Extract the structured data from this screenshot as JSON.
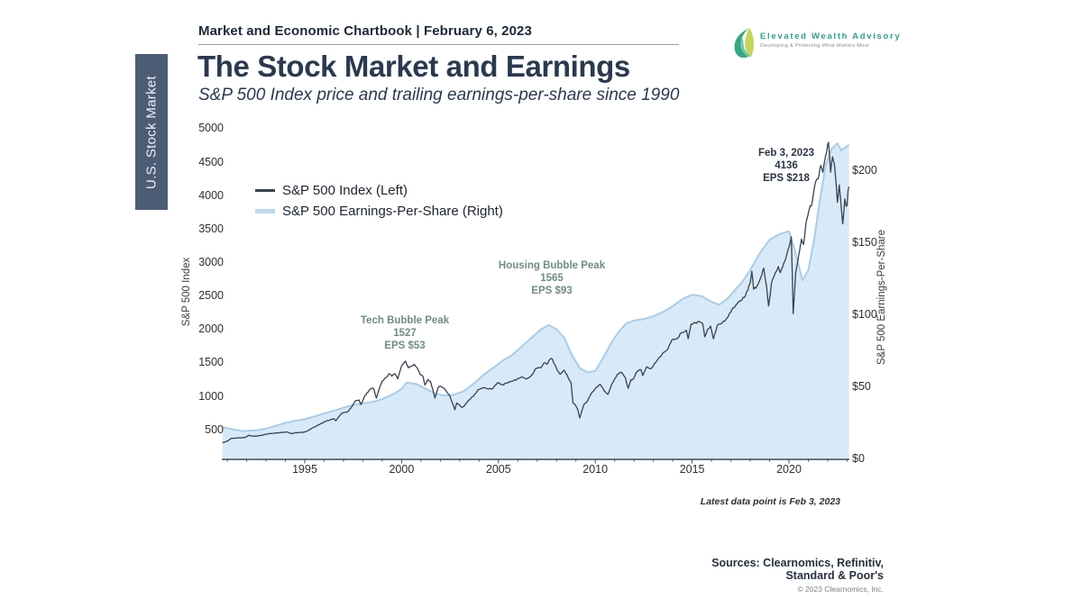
{
  "page": {
    "header": "Market and Economic Chartbook | February 6, 2023",
    "title": "The Stock Market and Earnings",
    "subtitle": "S&P 500 Index price and trailing earnings-per-share since 1990",
    "section_tab": "U.S. Stock Market",
    "footnote": "Latest data point is Feb 3, 2023",
    "sources_line1": "Sources: Clearnomics, Refinitiv,",
    "sources_line2": "Standard & Poor's",
    "copyright": "© 2023 Clearnomics, Inc."
  },
  "logo": {
    "name": "Elevated Wealth Advisory",
    "tagline": "Developing & Protecting What Matters Most",
    "brand_color": "#2f9e8f"
  },
  "colors": {
    "index_line": "#39434e",
    "eps_fill": "#d8eaf8",
    "eps_stroke": "#a8cde9",
    "axis": "#3f4a55",
    "annotation_green": "#6d8f7d",
    "tab_background": "#4d5c75"
  },
  "chart_data": {
    "type": "line",
    "title": "The Stock Market and Earnings",
    "subtitle": "S&P 500 Index price and trailing earnings-per-share since 1990",
    "grid": false,
    "legend_position": "upper-left",
    "legend": [
      {
        "label": "S&P 500 Index (Left)",
        "color": "#39434e",
        "style": "line"
      },
      {
        "label": "S&P 500 Earnings-Per-Share (Right)",
        "color": "#bcd9f0",
        "style": "area"
      }
    ],
    "x_axis": {
      "range": [
        1990.7,
        2023.3
      ],
      "ticks": [
        1995,
        2000,
        2005,
        2010,
        2015,
        2020
      ]
    },
    "left_axis": {
      "label": "S&P 500 Index",
      "range": [
        0,
        5000
      ],
      "ticks": [
        500,
        1000,
        1500,
        2000,
        2500,
        3000,
        3500,
        4000,
        4500,
        5000
      ]
    },
    "right_axis": {
      "label": "S&P 500 Earnings-Per-Share",
      "range": [
        0,
        225
      ],
      "tick_values": [
        0,
        50,
        100,
        150,
        200
      ],
      "ticks": [
        "$0",
        "$50",
        "$100",
        "$150",
        "$200"
      ]
    },
    "annotations": [
      {
        "lines": [
          "Tech Bubble Peak",
          "1527",
          "EPS $53"
        ],
        "x": 2000.2,
        "color": "#6d8f7d"
      },
      {
        "lines": [
          "Housing Bubble Peak",
          "1565",
          "EPS $93"
        ],
        "x": 2007.75,
        "color": "#6d8f7d"
      },
      {
        "lines": [
          "Feb 3, 2023",
          "4136",
          "EPS $218"
        ],
        "x": 2023.1,
        "color": "#2a3644"
      }
    ],
    "series": [
      {
        "name": "S&P 500 Index",
        "axis": "left",
        "type": "line",
        "points": [
          [
            1990.75,
            306
          ],
          [
            1991.0,
            330
          ],
          [
            1991.2,
            373
          ],
          [
            1991.5,
            378
          ],
          [
            1991.9,
            385
          ],
          [
            1992.1,
            417
          ],
          [
            1992.4,
            403
          ],
          [
            1992.7,
            414
          ],
          [
            1993.0,
            435
          ],
          [
            1993.4,
            448
          ],
          [
            1993.8,
            459
          ],
          [
            1994.1,
            467
          ],
          [
            1994.3,
            446
          ],
          [
            1994.6,
            455
          ],
          [
            1994.9,
            461
          ],
          [
            1995.1,
            478
          ],
          [
            1995.4,
            527
          ],
          [
            1995.7,
            572
          ],
          [
            1996.0,
            616
          ],
          [
            1996.2,
            640
          ],
          [
            1996.5,
            666
          ],
          [
            1996.6,
            635
          ],
          [
            1996.9,
            744
          ],
          [
            1997.2,
            766
          ],
          [
            1997.4,
            830
          ],
          [
            1997.6,
            930
          ],
          [
            1997.8,
            946
          ],
          [
            1997.9,
            876
          ],
          [
            1998.1,
            1010
          ],
          [
            1998.4,
            1110
          ],
          [
            1998.55,
            1120
          ],
          [
            1998.7,
            973
          ],
          [
            1998.9,
            1160
          ],
          [
            1999.0,
            1229
          ],
          [
            1999.2,
            1280
          ],
          [
            1999.35,
            1340
          ],
          [
            1999.5,
            1300
          ],
          [
            1999.65,
            1340
          ],
          [
            1999.8,
            1260
          ],
          [
            2000.0,
            1455
          ],
          [
            2000.2,
            1527
          ],
          [
            2000.35,
            1425
          ],
          [
            2000.5,
            1450
          ],
          [
            2000.65,
            1480
          ],
          [
            2000.85,
            1400
          ],
          [
            2000.95,
            1330
          ],
          [
            2001.1,
            1300
          ],
          [
            2001.2,
            1170
          ],
          [
            2001.35,
            1250
          ],
          [
            2001.5,
            1220
          ],
          [
            2001.72,
            975
          ],
          [
            2001.9,
            1140
          ],
          [
            2002.05,
            1150
          ],
          [
            2002.25,
            1100
          ],
          [
            2002.5,
            1000
          ],
          [
            2002.75,
            800
          ],
          [
            2002.85,
            900
          ],
          [
            2002.95,
            880
          ],
          [
            2003.1,
            835
          ],
          [
            2003.25,
            860
          ],
          [
            2003.45,
            940
          ],
          [
            2003.7,
            1000
          ],
          [
            2003.95,
            1100
          ],
          [
            2004.2,
            1130
          ],
          [
            2004.45,
            1110
          ],
          [
            2004.7,
            1115
          ],
          [
            2004.95,
            1205
          ],
          [
            2005.2,
            1170
          ],
          [
            2005.45,
            1200
          ],
          [
            2005.7,
            1225
          ],
          [
            2005.95,
            1255
          ],
          [
            2006.2,
            1290
          ],
          [
            2006.45,
            1260
          ],
          [
            2006.7,
            1310
          ],
          [
            2006.95,
            1420
          ],
          [
            2007.2,
            1430
          ],
          [
            2007.35,
            1500
          ],
          [
            2007.5,
            1480
          ],
          [
            2007.6,
            1530
          ],
          [
            2007.75,
            1565
          ],
          [
            2007.9,
            1480
          ],
          [
            2008.05,
            1380
          ],
          [
            2008.2,
            1330
          ],
          [
            2008.4,
            1390
          ],
          [
            2008.6,
            1280
          ],
          [
            2008.75,
            1200
          ],
          [
            2008.85,
            900
          ],
          [
            2008.95,
            880
          ],
          [
            2009.1,
            800
          ],
          [
            2009.2,
            677
          ],
          [
            2009.4,
            870
          ],
          [
            2009.6,
            930
          ],
          [
            2009.8,
            1050
          ],
          [
            2010.0,
            1115
          ],
          [
            2010.25,
            1180
          ],
          [
            2010.5,
            1070
          ],
          [
            2010.65,
            1030
          ],
          [
            2010.85,
            1180
          ],
          [
            2011.0,
            1260
          ],
          [
            2011.15,
            1330
          ],
          [
            2011.35,
            1360
          ],
          [
            2011.55,
            1280
          ],
          [
            2011.7,
            1120
          ],
          [
            2011.85,
            1250
          ],
          [
            2011.95,
            1255
          ],
          [
            2012.15,
            1370
          ],
          [
            2012.35,
            1400
          ],
          [
            2012.45,
            1310
          ],
          [
            2012.65,
            1440
          ],
          [
            2012.85,
            1410
          ],
          [
            2013.0,
            1460
          ],
          [
            2013.25,
            1560
          ],
          [
            2013.45,
            1630
          ],
          [
            2013.7,
            1690
          ],
          [
            2013.95,
            1840
          ],
          [
            2014.2,
            1860
          ],
          [
            2014.45,
            1950
          ],
          [
            2014.7,
            1990
          ],
          [
            2014.8,
            1860
          ],
          [
            2014.95,
            2080
          ],
          [
            2015.15,
            2100
          ],
          [
            2015.4,
            2110
          ],
          [
            2015.55,
            2080
          ],
          [
            2015.65,
            1890
          ],
          [
            2015.8,
            2000
          ],
          [
            2015.95,
            2050
          ],
          [
            2016.1,
            1860
          ],
          [
            2016.3,
            2060
          ],
          [
            2016.55,
            2100
          ],
          [
            2016.8,
            2170
          ],
          [
            2017.0,
            2260
          ],
          [
            2017.25,
            2360
          ],
          [
            2017.5,
            2430
          ],
          [
            2017.75,
            2500
          ],
          [
            2018.0,
            2690
          ],
          [
            2018.08,
            2870
          ],
          [
            2018.18,
            2600
          ],
          [
            2018.35,
            2650
          ],
          [
            2018.55,
            2780
          ],
          [
            2018.7,
            2915
          ],
          [
            2018.85,
            2630
          ],
          [
            2018.95,
            2350
          ],
          [
            2019.1,
            2700
          ],
          [
            2019.3,
            2850
          ],
          [
            2019.45,
            2940
          ],
          [
            2019.55,
            2850
          ],
          [
            2019.75,
            3000
          ],
          [
            2020.0,
            3230
          ],
          [
            2020.12,
            3385
          ],
          [
            2020.22,
            2237
          ],
          [
            2020.35,
            2850
          ],
          [
            2020.5,
            3100
          ],
          [
            2020.65,
            3350
          ],
          [
            2020.75,
            3270
          ],
          [
            2020.9,
            3620
          ],
          [
            2021.05,
            3800
          ],
          [
            2021.2,
            3900
          ],
          [
            2021.35,
            4180
          ],
          [
            2021.5,
            4250
          ],
          [
            2021.65,
            4450
          ],
          [
            2021.75,
            4350
          ],
          [
            2021.9,
            4600
          ],
          [
            2022.0,
            4770
          ],
          [
            2022.04,
            4796
          ],
          [
            2022.15,
            4350
          ],
          [
            2022.25,
            4580
          ],
          [
            2022.35,
            4460
          ],
          [
            2022.45,
            4130
          ],
          [
            2022.5,
            3900
          ],
          [
            2022.6,
            4160
          ],
          [
            2022.67,
            3920
          ],
          [
            2022.75,
            3650
          ],
          [
            2022.78,
            3577
          ],
          [
            2022.88,
            3950
          ],
          [
            2022.95,
            3840
          ],
          [
            2023.0,
            3850
          ],
          [
            2023.05,
            4070
          ],
          [
            2023.09,
            4136
          ]
        ]
      },
      {
        "name": "S&P 500 Earnings-Per-Share",
        "axis": "right",
        "type": "area",
        "points": [
          [
            1990.75,
            22
          ],
          [
            1991.3,
            20.5
          ],
          [
            1991.8,
            19.3
          ],
          [
            1992.5,
            19.8
          ],
          [
            1993.0,
            21
          ],
          [
            1993.5,
            23
          ],
          [
            1994.0,
            25
          ],
          [
            1994.5,
            26.5
          ],
          [
            1995.0,
            27.5
          ],
          [
            1995.5,
            29.5
          ],
          [
            1996.0,
            31.5
          ],
          [
            1996.5,
            33.5
          ],
          [
            1997.0,
            35.5
          ],
          [
            1997.5,
            37.5
          ],
          [
            1998.0,
            38.5
          ],
          [
            1998.5,
            39.5
          ],
          [
            1999.0,
            41.5
          ],
          [
            1999.5,
            44.5
          ],
          [
            2000.0,
            48.5
          ],
          [
            2000.25,
            53
          ],
          [
            2000.75,
            52
          ],
          [
            2001.2,
            49
          ],
          [
            2001.7,
            45.5
          ],
          [
            2002.2,
            44
          ],
          [
            2002.7,
            44.5
          ],
          [
            2003.2,
            47
          ],
          [
            2003.7,
            52
          ],
          [
            2004.2,
            58
          ],
          [
            2004.7,
            63
          ],
          [
            2005.2,
            68
          ],
          [
            2005.7,
            72
          ],
          [
            2006.2,
            78
          ],
          [
            2006.7,
            84
          ],
          [
            2007.2,
            90
          ],
          [
            2007.6,
            93
          ],
          [
            2008.0,
            90
          ],
          [
            2008.4,
            84
          ],
          [
            2008.8,
            72
          ],
          [
            2009.2,
            63
          ],
          [
            2009.6,
            60
          ],
          [
            2010.0,
            61
          ],
          [
            2010.4,
            70
          ],
          [
            2010.8,
            80
          ],
          [
            2011.2,
            88
          ],
          [
            2011.6,
            94
          ],
          [
            2012.0,
            96
          ],
          [
            2012.5,
            97
          ],
          [
            2013.0,
            99
          ],
          [
            2013.5,
            102
          ],
          [
            2014.0,
            106
          ],
          [
            2014.5,
            111
          ],
          [
            2015.0,
            114
          ],
          [
            2015.5,
            113
          ],
          [
            2016.0,
            109
          ],
          [
            2016.4,
            107
          ],
          [
            2016.8,
            111
          ],
          [
            2017.2,
            117
          ],
          [
            2017.6,
            123
          ],
          [
            2018.0,
            131
          ],
          [
            2018.5,
            143
          ],
          [
            2019.0,
            152
          ],
          [
            2019.5,
            156
          ],
          [
            2020.0,
            158
          ],
          [
            2020.3,
            145
          ],
          [
            2020.7,
            124
          ],
          [
            2021.0,
            131
          ],
          [
            2021.3,
            152
          ],
          [
            2021.6,
            180
          ],
          [
            2021.9,
            204
          ],
          [
            2022.2,
            215
          ],
          [
            2022.5,
            219
          ],
          [
            2022.7,
            214
          ],
          [
            2022.9,
            216
          ],
          [
            2023.1,
            218
          ]
        ]
      }
    ]
  }
}
